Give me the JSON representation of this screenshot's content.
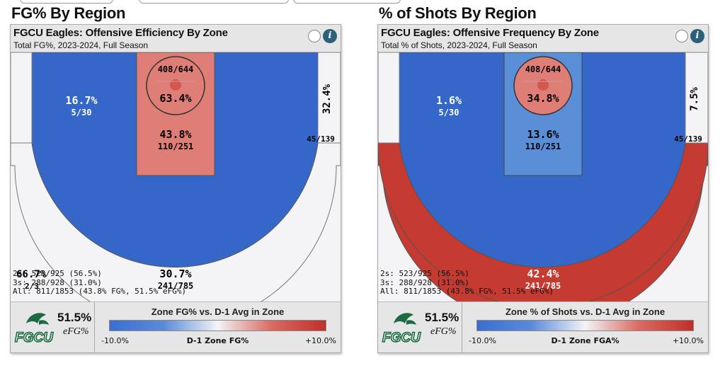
{
  "left": {
    "section_title": "FG% By Region",
    "panel_title": "FGCU Eagles: Offensive Efficiency By Zone",
    "subtitle": "Total FG%, 2023-2024, Full Season",
    "zones": {
      "rim_count": "408/644",
      "rim_pct": "63.4%",
      "paint_pct": "43.8%",
      "paint_count": "110/251",
      "midleft_pct": "16.7%",
      "midleft_count": "5/30",
      "corner_right_pct": "32.4%",
      "corner_right_count": "45/139",
      "three_pct": "30.7%",
      "three_count": "241/785",
      "corner_left_pct": "66.7%",
      "corner_left_count": "2/3"
    },
    "summary": {
      "twos": "2s: 523/925 (56.5%)",
      "threes": "3s: 288/928 (31.0%)",
      "all": "All: 811/1853 (43.8% FG%, 51.5% eFG%)"
    },
    "efg_value": "51.5%",
    "efg_label": "eFG%",
    "scale_title": "Zone FG% vs. D-1 Avg in Zone",
    "scale_min": "-10.0%",
    "scale_mid": "D-1 Zone FG%",
    "scale_max": "+10.0%",
    "logo_text": "FGCU"
  },
  "right": {
    "section_title": "% of Shots By Region",
    "panel_title": "FGCU Eagles: Offensive Frequency By Zone",
    "subtitle": "Total % of Shots, 2023-2024, Full Season",
    "zones": {
      "rim_count": "408/644",
      "rim_pct": "34.8%",
      "paint_pct": "13.6%",
      "paint_count": "110/251",
      "midleft_pct": "1.6%",
      "midleft_count": "5/30",
      "corner_right_pct": "7.5%",
      "corner_right_count": "45/139",
      "three_pct": "42.4%",
      "three_count": "241/785"
    },
    "summary": {
      "twos": "2s: 523/925 (56.5%)",
      "threes": "3s: 288/928 (31.0%)",
      "all": "All: 811/1853 (43.8% FG%, 51.5% eFG%)"
    },
    "efg_value": "51.5%",
    "efg_label": "eFG%",
    "scale_title": "Zone % of Shots vs. D-1 Avg in Zone",
    "scale_min": "-10.0%",
    "scale_mid": "D-1 Zone FGA%",
    "scale_max": "+10.0%",
    "logo_text": "FGCU"
  },
  "colors": {
    "blue": "#3567c9",
    "red": "#c53a31",
    "light_red": "#df7e77",
    "light_blue": "#5a8fd8",
    "white_zone": "#f4f4f6",
    "logo_green": "#1d6b43"
  }
}
